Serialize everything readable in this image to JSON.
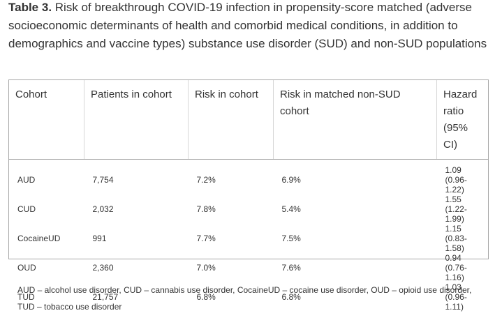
{
  "caption": {
    "label": "Table 3.",
    "text": " Risk of breakthrough COVID-19 infection in propensity-score matched (adverse socioeconomic determinants of health and comorbid medical conditions, in addition to demographics and vaccine types) substance use disorder (SUD) and non-SUD populations"
  },
  "table": {
    "headers": [
      "Cohort",
      "Patients in cohort",
      "Risk in cohort",
      "Risk in matched non-SUD cohort",
      "Hazard ratio (95% CI)"
    ],
    "rows": [
      [
        "AUD",
        "7,754",
        "7.2%",
        "6.9%",
        "1.09 (0.96-1.22)"
      ],
      [
        "CUD",
        "2,032",
        "7.8%",
        "5.4%",
        "1.55 (1.22-1.99)"
      ],
      [
        "CocaineUD",
        "991",
        "7.7%",
        "7.5%",
        "1.15 (0.83-1.58)"
      ],
      [
        "OUD",
        "2,360",
        "7.0%",
        "7.6%",
        "0.94 (0.76-1.16)"
      ],
      [
        "TUD",
        "21,757",
        "6.8%",
        "6.8%",
        "1.03 (0.96-1.11)"
      ]
    ]
  },
  "footnote": "AUD – alcohol use disorder, CUD – cannabis use disorder, CocaineUD – cocaine use disorder, OUD – opioid use disorder, TUD – tobacco use disorder"
}
